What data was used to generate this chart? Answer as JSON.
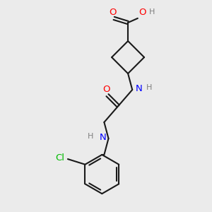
{
  "background_color": "#ebebeb",
  "bond_color": "#1a1a1a",
  "bond_width": 1.5,
  "atom_colors": {
    "O": "#ff0000",
    "N": "#0000ff",
    "Cl": "#00bb00",
    "H": "#808080"
  },
  "figsize": [
    3.0,
    3.0
  ],
  "dpi": 100,
  "scale": 1.0
}
